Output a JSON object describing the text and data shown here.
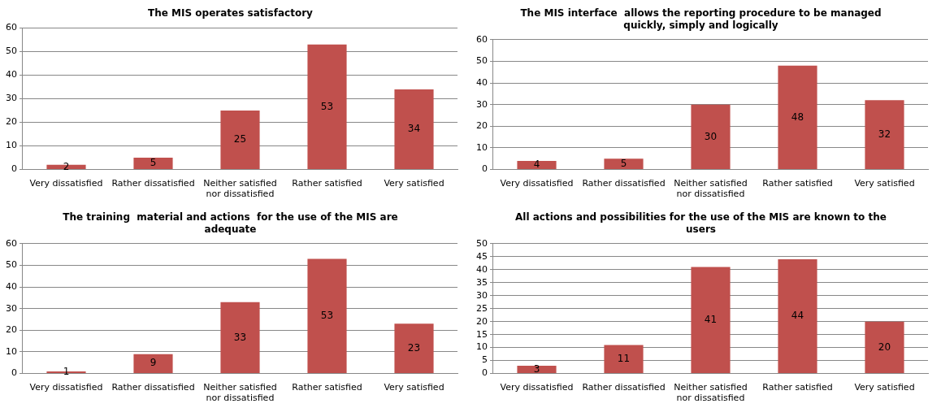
{
  "chart_data": [
    {
      "type": "bar",
      "title": "The MIS operates satisfactory",
      "categories": [
        "Very dissatisfied",
        "Rather dissatisfied",
        "Neither satisfied nor dissatisfied",
        "Rather satisfied",
        "Very satisfied"
      ],
      "values": [
        2,
        5,
        25,
        53,
        34
      ],
      "color": "#c0504d",
      "ylim": [
        0,
        60
      ],
      "yticks": [
        0,
        10,
        20,
        30,
        40,
        50,
        60
      ],
      "grid": "y",
      "data_labels": true,
      "legend": false
    },
    {
      "type": "bar",
      "title": "The MIS interface  allows the reporting procedure to be managed quickly, simply and logically",
      "categories": [
        "Very dissatisfied",
        "Rather dissatisfied",
        "Neither satisfied nor dissatisfied",
        "Rather satisfied",
        "Very satisfied"
      ],
      "values": [
        4,
        5,
        30,
        48,
        32
      ],
      "color": "#c0504d",
      "ylim": [
        0,
        60
      ],
      "yticks": [
        0,
        10,
        20,
        30,
        40,
        50,
        60
      ],
      "grid": "y",
      "data_labels": true,
      "legend": false
    },
    {
      "type": "bar",
      "title": "The training  material and actions  for the use of the MIS are adequate",
      "categories": [
        "Very dissatisfied",
        "Rather dissatisfied",
        "Neither satisfied nor dissatisfied",
        "Rather satisfied",
        "Very satisfied"
      ],
      "values": [
        1,
        9,
        33,
        53,
        23
      ],
      "color": "#c0504d",
      "ylim": [
        0,
        60
      ],
      "yticks": [
        0,
        10,
        20,
        30,
        40,
        50,
        60
      ],
      "grid": "y",
      "data_labels": true,
      "legend": false
    },
    {
      "type": "bar",
      "title": "All actions and possibilities for the use of the MIS are known to the users",
      "categories": [
        "Very dissatisfied",
        "Rather dissatisfied",
        "Neither satisfied nor dissatisfied",
        "Rather satisfied",
        "Very satisfied"
      ],
      "values": [
        3,
        11,
        41,
        44,
        20
      ],
      "color": "#c0504d",
      "ylim": [
        0,
        50
      ],
      "yticks": [
        0,
        5,
        10,
        15,
        20,
        25,
        30,
        35,
        40,
        45,
        50
      ],
      "grid": "y",
      "data_labels": true,
      "legend": false
    }
  ]
}
